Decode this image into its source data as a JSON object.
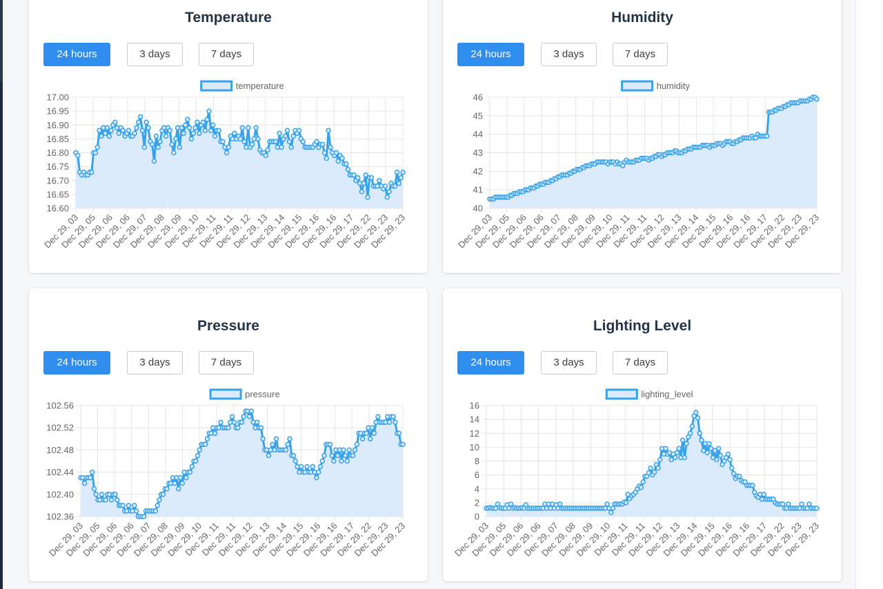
{
  "colors": {
    "line": "#36a2eb",
    "fill": "#dcebfb",
    "grid": "#e5e5e5",
    "axis_text": "#666666"
  },
  "range_buttons": [
    "24 hours",
    "3 days",
    "7 days"
  ],
  "active_range": "24 hours",
  "x_tick_labels": [
    "Dec 29, 03",
    "Dec 29, 05",
    "Dec 29, 06",
    "Dec 29, 06",
    "Dec 29, 07",
    "Dec 29, 08",
    "Dec 29, 09",
    "Dec 29, 10",
    "Dec 29, 11",
    "Dec 29, 11",
    "Dec 29, 12",
    "Dec 29, 13",
    "Dec 29, 14",
    "Dec 29, 15",
    "Dec 29, 16",
    "Dec 29, 16",
    "Dec 29, 17",
    "Dec 29, 22",
    "Dec 29, 23",
    "Dec 29, 23"
  ],
  "cards": [
    {
      "key": "temperature",
      "title": "Temperature"
    },
    {
      "key": "humidity",
      "title": "Humidity"
    },
    {
      "key": "pressure",
      "title": "Pressure"
    },
    {
      "key": "lighting",
      "title": "Lighting Level"
    }
  ],
  "chart_data": [
    {
      "type": "line",
      "title": "Temperature",
      "legend": "temperature",
      "ylim": [
        16.6,
        17.0
      ],
      "yticks": [
        16.6,
        16.65,
        16.7,
        16.75,
        16.8,
        16.85,
        16.9,
        16.95,
        17.0
      ],
      "ydecimals": 2,
      "grid": true,
      "legend_position": "top",
      "values": [
        16.8,
        16.79,
        16.73,
        16.72,
        16.73,
        16.72,
        16.72,
        16.73,
        16.73,
        16.8,
        16.8,
        16.82,
        16.88,
        16.86,
        16.89,
        16.87,
        16.89,
        16.86,
        16.88,
        16.9,
        16.91,
        16.89,
        16.87,
        16.89,
        16.88,
        16.86,
        16.87,
        16.88,
        16.86,
        16.86,
        16.87,
        16.89,
        16.91,
        16.93,
        16.88,
        16.82,
        16.91,
        16.89,
        16.84,
        16.83,
        16.77,
        16.86,
        16.82,
        16.84,
        16.88,
        16.89,
        16.86,
        16.89,
        16.88,
        16.83,
        16.8,
        16.85,
        16.89,
        16.82,
        16.89,
        16.87,
        16.9,
        16.92,
        16.89,
        16.85,
        16.87,
        16.89,
        16.91,
        16.87,
        16.9,
        16.91,
        16.88,
        16.92,
        16.95,
        16.88,
        16.9,
        16.86,
        16.88,
        16.88,
        16.84,
        16.84,
        16.82,
        16.8,
        16.82,
        16.86,
        16.85,
        16.87,
        16.85,
        16.86,
        16.85,
        16.89,
        16.84,
        16.82,
        16.89,
        16.82,
        16.83,
        16.85,
        16.89,
        16.85,
        16.81,
        16.8,
        16.8,
        16.79,
        16.81,
        16.84,
        16.84,
        16.84,
        16.84,
        16.82,
        16.87,
        16.82,
        16.85,
        16.86,
        16.88,
        16.84,
        16.82,
        16.86,
        16.88,
        16.87,
        16.88,
        16.85,
        16.84,
        16.82,
        16.82,
        16.82,
        16.82,
        16.82,
        16.83,
        16.84,
        16.82,
        16.83,
        16.83,
        16.8,
        16.78,
        16.88,
        16.82,
        16.8,
        16.79,
        16.8,
        16.77,
        16.79,
        16.78,
        16.76,
        16.76,
        16.74,
        16.72,
        16.72,
        16.72,
        16.7,
        16.71,
        16.69,
        16.66,
        16.69,
        16.72,
        16.64,
        16.71,
        16.71,
        16.68,
        16.68,
        16.68,
        16.7,
        16.68,
        16.67,
        16.68,
        16.64,
        16.66,
        16.69,
        16.68,
        16.68,
        16.73,
        16.69,
        16.71,
        16.73
      ]
    },
    {
      "type": "line",
      "title": "Humidity",
      "legend": "humidity",
      "ylim": [
        40,
        46
      ],
      "yticks": [
        40,
        41,
        42,
        43,
        44,
        45,
        46
      ],
      "ydecimals": 0,
      "grid": true,
      "legend_position": "top",
      "values": [
        40.5,
        40.5,
        40.5,
        40.6,
        40.6,
        40.6,
        40.6,
        40.6,
        40.6,
        40.6,
        40.6,
        40.7,
        40.7,
        40.8,
        40.8,
        40.8,
        40.9,
        40.9,
        40.9,
        41.0,
        41.0,
        41.0,
        41.1,
        41.1,
        41.1,
        41.2,
        41.2,
        41.3,
        41.3,
        41.3,
        41.4,
        41.4,
        41.4,
        41.5,
        41.5,
        41.6,
        41.6,
        41.7,
        41.7,
        41.8,
        41.8,
        41.8,
        41.8,
        41.9,
        41.9,
        42.0,
        42.0,
        42.1,
        42.1,
        42.1,
        42.2,
        42.2,
        42.3,
        42.3,
        42.3,
        42.4,
        42.4,
        42.4,
        42.5,
        42.5,
        42.5,
        42.5,
        42.5,
        42.5,
        42.4,
        42.5,
        42.5,
        42.5,
        42.4,
        42.5,
        42.4,
        42.4,
        42.3,
        42.5,
        42.6,
        42.5,
        42.5,
        42.5,
        42.5,
        42.6,
        42.6,
        42.6,
        42.7,
        42.7,
        42.7,
        42.7,
        42.6,
        42.7,
        42.7,
        42.8,
        42.8,
        42.9,
        42.9,
        42.8,
        42.9,
        42.9,
        43.0,
        43.0,
        43.0,
        43.0,
        43.1,
        43.1,
        43.0,
        43.0,
        43.0,
        43.1,
        43.1,
        43.2,
        43.2,
        43.2,
        43.3,
        43.3,
        43.3,
        43.3,
        43.3,
        43.4,
        43.4,
        43.4,
        43.4,
        43.3,
        43.4,
        43.4,
        43.4,
        43.5,
        43.5,
        43.5,
        43.4,
        43.5,
        43.6,
        43.6,
        43.6,
        43.5,
        43.5,
        43.6,
        43.6,
        43.7,
        43.7,
        43.8,
        43.8,
        43.8,
        43.8,
        43.8,
        43.9,
        43.8,
        43.8,
        44.0,
        43.9,
        43.9,
        43.9,
        43.9,
        43.9,
        45.2,
        45.2,
        45.2,
        45.3,
        45.3,
        45.4,
        45.4,
        45.4,
        45.5,
        45.5,
        45.6,
        45.6,
        45.7,
        45.7,
        45.7,
        45.7,
        45.7,
        45.8,
        45.8,
        45.8,
        45.8,
        45.8,
        45.9,
        45.9,
        46.0,
        46.0,
        45.9
      ]
    },
    {
      "type": "line",
      "title": "Pressure",
      "legend": "pressure",
      "ylim": [
        102.36,
        102.56
      ],
      "yticks": [
        102.36,
        102.4,
        102.44,
        102.48,
        102.52,
        102.56
      ],
      "ydecimals": 2,
      "grid": true,
      "legend_position": "top",
      "values": [
        102.43,
        102.43,
        102.42,
        102.43,
        102.43,
        102.43,
        102.44,
        102.41,
        102.4,
        102.39,
        102.39,
        102.4,
        102.39,
        102.39,
        102.4,
        102.4,
        102.39,
        102.4,
        102.4,
        102.39,
        102.38,
        102.38,
        102.38,
        102.37,
        102.37,
        102.38,
        102.37,
        102.37,
        102.38,
        102.37,
        102.36,
        102.36,
        102.36,
        102.36,
        102.37,
        102.37,
        102.37,
        102.37,
        102.37,
        102.37,
        102.38,
        102.39,
        102.4,
        102.4,
        102.41,
        102.41,
        102.42,
        102.42,
        102.43,
        102.42,
        102.43,
        102.41,
        102.43,
        102.42,
        102.44,
        102.43,
        102.44,
        102.44,
        102.45,
        102.46,
        102.46,
        102.47,
        102.48,
        102.49,
        102.49,
        102.49,
        102.5,
        102.51,
        102.51,
        102.52,
        102.51,
        102.52,
        102.52,
        102.53,
        102.52,
        102.52,
        102.52,
        102.52,
        102.53,
        102.54,
        102.53,
        102.52,
        102.52,
        102.53,
        102.53,
        102.54,
        102.55,
        102.55,
        102.54,
        102.55,
        102.53,
        102.52,
        102.53,
        102.52,
        102.52,
        102.5,
        102.48,
        102.48,
        102.47,
        102.48,
        102.49,
        102.48,
        102.5,
        102.48,
        102.48,
        102.48,
        102.48,
        102.48,
        102.49,
        102.5,
        102.47,
        102.47,
        102.46,
        102.45,
        102.44,
        102.45,
        102.44,
        102.44,
        102.45,
        102.44,
        102.44,
        102.45,
        102.44,
        102.43,
        102.44,
        102.45,
        102.46,
        102.47,
        102.49,
        102.49,
        102.49,
        102.47,
        102.46,
        102.48,
        102.47,
        102.48,
        102.46,
        102.48,
        102.47,
        102.46,
        102.48,
        102.47,
        102.47,
        102.48,
        102.49,
        102.51,
        102.51,
        102.5,
        102.51,
        102.51,
        102.52,
        102.5,
        102.52,
        102.51,
        102.53,
        102.54,
        102.53,
        102.53,
        102.53,
        102.53,
        102.54,
        102.53,
        102.54,
        102.54,
        102.53,
        102.51,
        102.51,
        102.49,
        102.49
      ]
    },
    {
      "type": "line",
      "title": "Lighting Level",
      "legend": "lighting_level",
      "ylim": [
        0,
        16
      ],
      "yticks": [
        0,
        2,
        4,
        6,
        8,
        10,
        12,
        14,
        16
      ],
      "ydecimals": 0,
      "grid": true,
      "legend_position": "top",
      "values": [
        1.2,
        1.2,
        1.3,
        1.2,
        1.2,
        1.2,
        1.8,
        1.3,
        1.2,
        1.2,
        1.2,
        1.7,
        1.2,
        1.8,
        1.2,
        1.3,
        1.2,
        1.2,
        1.2,
        1.3,
        1.2,
        1.7,
        1.2,
        1.2,
        1.2,
        1.2,
        1.2,
        1.2,
        1.2,
        1.2,
        1.2,
        1.8,
        1.2,
        1.8,
        1.2,
        1.8,
        1.2,
        1.7,
        1.2,
        1.8,
        1.2,
        1.2,
        1.2,
        1.2,
        1.2,
        1.2,
        1.2,
        1.2,
        1.2,
        1.2,
        1.2,
        1.2,
        1.2,
        1.2,
        1.2,
        1.2,
        1.2,
        1.2,
        1.2,
        1.2,
        1.2,
        1.2,
        1.2,
        1.2,
        1.8,
        1.2,
        0.6,
        1.2,
        1.8,
        1.8,
        1.8,
        1.8,
        1.8,
        2.1,
        2.0,
        3.2,
        2.6,
        3.0,
        3.2,
        3.5,
        4.0,
        4.4,
        4.2,
        5.0,
        5.8,
        5.8,
        6.3,
        7.0,
        6.0,
        6.4,
        7.5,
        7.0,
        8.2,
        9.8,
        9.0,
        9.8,
        9.0,
        9.2,
        8.2,
        9.0,
        8.5,
        9.2,
        9.8,
        8.5,
        11.0,
        8.5,
        10.5,
        11.5,
        12.0,
        13.0,
        14.5,
        15.0,
        14.2,
        12.0,
        11.0,
        9.5,
        10.5,
        9.2,
        10.5,
        9.8,
        8.5,
        9.5,
        8.2,
        9.8,
        8.8,
        7.5,
        8.0,
        8.5,
        9.0,
        8.2,
        7.0,
        6.2,
        5.5,
        5.8,
        5.8,
        5.2,
        5.0,
        5.0,
        4.5,
        4.5,
        4.5,
        4.5,
        3.5,
        3.0,
        2.8,
        3.2,
        2.5,
        3.2,
        2.5,
        2.5,
        2.5,
        2.5,
        2.5,
        2.0,
        1.8,
        1.8,
        1.8,
        1.8,
        1.2,
        1.2,
        1.8,
        1.2,
        1.2,
        1.2,
        1.2,
        1.2,
        1.2,
        1.8,
        1.2,
        1.2,
        1.2,
        1.8,
        1.2,
        1.2,
        1.2,
        1.2
      ]
    }
  ]
}
